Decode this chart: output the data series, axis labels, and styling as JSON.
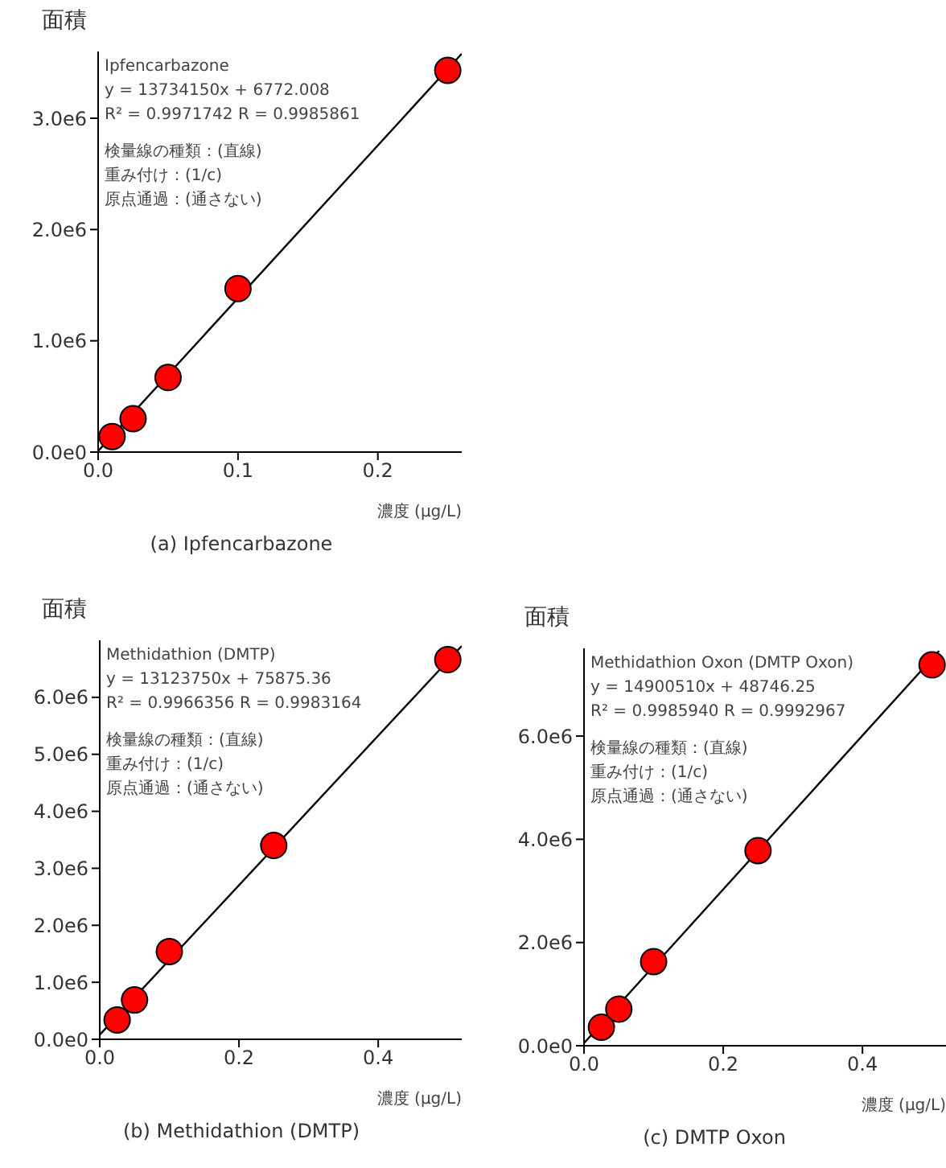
{
  "chart_data": [
    {
      "type": "scatter",
      "title": "(a) Ipfencarbazone",
      "xlabel": "濃度 (μg/L)",
      "ylabel": "面積",
      "xlim": [
        0,
        0.26
      ],
      "ylim": [
        0,
        3600000
      ],
      "xticks": [
        {
          "value": 0,
          "label": "0.0"
        },
        {
          "value": 0.1,
          "label": "0.1"
        },
        {
          "value": 0.2,
          "label": "0.2"
        }
      ],
      "yticks": [
        {
          "value": 0,
          "label": "0.0e0"
        },
        {
          "value": 1000000,
          "label": "1.0e6"
        },
        {
          "value": 2000000,
          "label": "2.0e6"
        },
        {
          "value": 3000000,
          "label": "3.0e6"
        }
      ],
      "grid": false,
      "legend": false,
      "annotations": [
        "Ipfencarbazone",
        "y = 13734150x + 6772.008",
        "R² = 0.9971742  R = 0.9985861",
        "検量線の種類：(直線)",
        "重み付け：(1/c)",
        "原点通過：(通さない)"
      ],
      "series": [
        {
          "color": "#ff0000",
          "marker": "circle",
          "x": [
            0.01,
            0.025,
            0.05,
            0.1,
            0.25
          ],
          "values": [
            140000,
            300000,
            670000,
            1470000,
            3430000
          ]
        },
        {
          "type": "line",
          "color": "#000000",
          "marker": "none",
          "x": [
            0,
            0.26
          ],
          "values": [
            10000,
            3580000
          ]
        }
      ]
    },
    {
      "type": "scatter",
      "title": "(b) Methidathion (DMTP)",
      "xlabel": "濃度 (μg/L)",
      "ylabel": "面積",
      "xlim": [
        0,
        0.52
      ],
      "ylim": [
        0,
        7000000
      ],
      "xticks": [
        {
          "value": 0,
          "label": "0.0"
        },
        {
          "value": 0.2,
          "label": "0.2"
        },
        {
          "value": 0.4,
          "label": "0.4"
        }
      ],
      "yticks": [
        {
          "value": 0,
          "label": "0.0e0"
        },
        {
          "value": 1000000,
          "label": "1.0e6"
        },
        {
          "value": 2000000,
          "label": "2.0e6"
        },
        {
          "value": 3000000,
          "label": "3.0e6"
        },
        {
          "value": 4000000,
          "label": "4.0e6"
        },
        {
          "value": 5000000,
          "label": "5.0e6"
        },
        {
          "value": 6000000,
          "label": "6.0e6"
        }
      ],
      "grid": false,
      "legend": false,
      "annotations": [
        "Methidathion (DMTP)",
        "y = 13123750x + 75875.36",
        "R² = 0.9966356    R = 0.9983164",
        "検量線の種類：(直線)",
        "重み付け：(1/c)",
        "原点通過：(通さない)"
      ],
      "series": [
        {
          "color": "#ff0000",
          "marker": "circle",
          "x": [
            0.025,
            0.05,
            0.1,
            0.25,
            0.5
          ],
          "values": [
            340000,
            690000,
            1540000,
            3400000,
            6660000
          ]
        },
        {
          "type": "line",
          "color": "#000000",
          "marker": "none",
          "x": [
            0,
            0.52
          ],
          "values": [
            80000,
            6900000
          ]
        }
      ]
    },
    {
      "type": "scatter",
      "title": "(c) DMTP Oxon",
      "xlabel": "濃度 (μg/L)",
      "ylabel": "面積",
      "xlim": [
        0,
        0.52
      ],
      "ylim": [
        0,
        7700000
      ],
      "xticks": [
        {
          "value": 0,
          "label": "0.0"
        },
        {
          "value": 0.2,
          "label": "0.2"
        },
        {
          "value": 0.4,
          "label": "0.4"
        }
      ],
      "yticks": [
        {
          "value": 0,
          "label": "0.0e0"
        },
        {
          "value": 2000000,
          "label": "2.0e6"
        },
        {
          "value": 4000000,
          "label": "4.0e6"
        },
        {
          "value": 6000000,
          "label": "6.0e6"
        }
      ],
      "grid": false,
      "legend": false,
      "annotations": [
        "Methidathion Oxon (DMTP Oxon)",
        "y = 14900510x + 48746.25",
        "R² = 0.9985940    R = 0.9992967",
        "検量線の種類：(直線)",
        "重み付け：(1/c)",
        "原点通過：(通さない)"
      ],
      "series": [
        {
          "color": "#ff0000",
          "marker": "circle",
          "x": [
            0.025,
            0.05,
            0.1,
            0.25,
            0.5
          ],
          "values": [
            360000,
            710000,
            1630000,
            3780000,
            7380000
          ]
        },
        {
          "type": "line",
          "color": "#000000",
          "marker": "none",
          "x": [
            0,
            0.51
          ],
          "values": [
            50000,
            7650000
          ]
        }
      ]
    }
  ]
}
